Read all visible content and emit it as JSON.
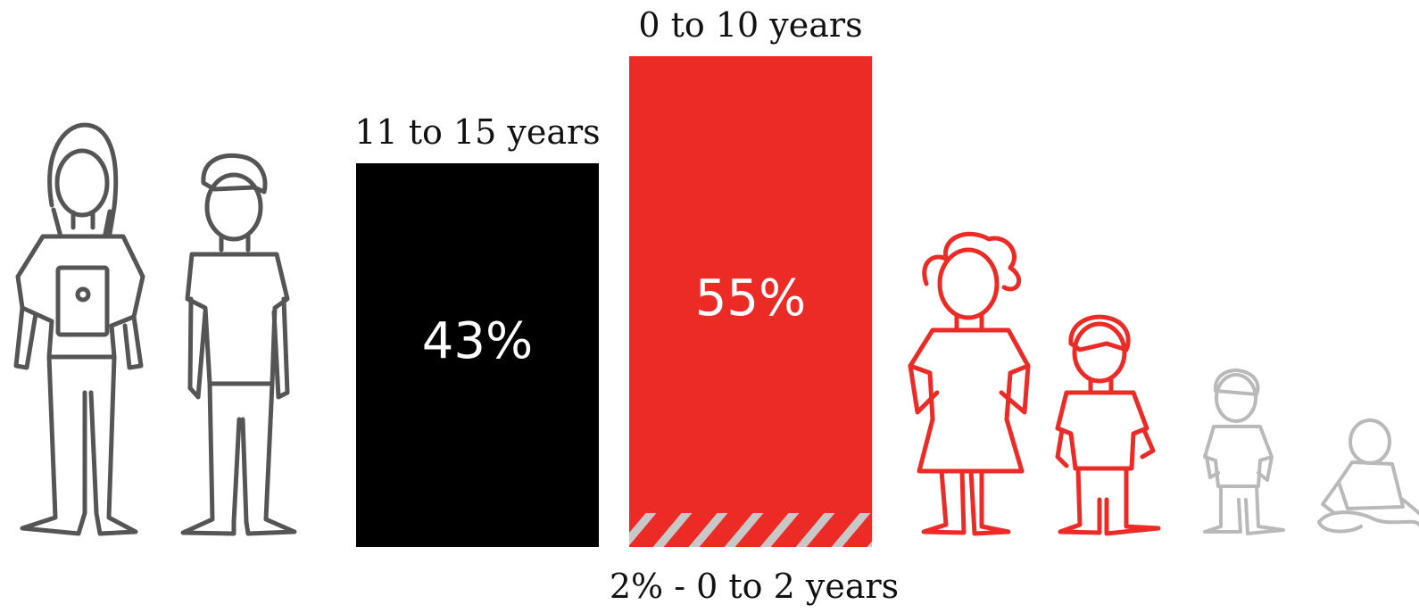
{
  "chart_data": {
    "type": "bar",
    "categories": [
      "11 to 15 years",
      "0 to 10 years"
    ],
    "values": [
      43,
      55
    ],
    "value_labels": [
      "43%",
      "55%"
    ],
    "ylim": [
      0,
      60
    ],
    "segments": [
      {
        "category": "0 to 10 years",
        "value": 2,
        "label": "2% - 0 to 2 years",
        "pattern": "hatched"
      }
    ],
    "colors": [
      "#000000",
      "#ec2a26"
    ],
    "hatch_color": "#c8c8c8",
    "title": "",
    "xlabel": "",
    "ylabel": ""
  },
  "illustrations": {
    "left_group": [
      "teen-girl-with-tablet-icon",
      "teen-boy-icon"
    ],
    "right_group": [
      "girl-icon",
      "boy-icon",
      "toddler-icon",
      "baby-icon"
    ],
    "colors": {
      "teens": "#555555",
      "children": "#ec2a26",
      "infants": "#b9b9b9"
    }
  }
}
